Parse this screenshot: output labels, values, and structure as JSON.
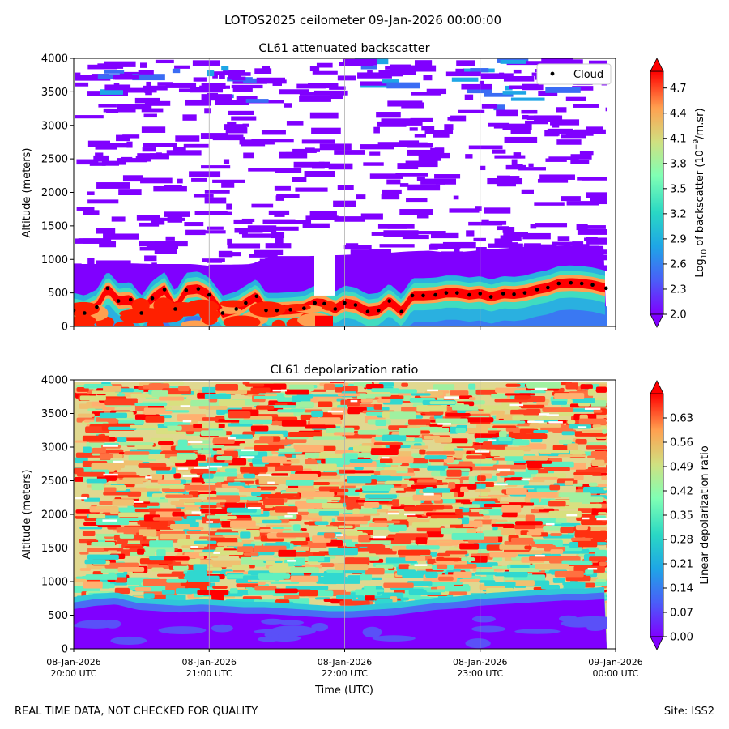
{
  "suptitle": "LOTOS2025 ceilometer 09-Jan-2026 00:00:00",
  "footer_left": "REAL TIME DATA, NOT CHECKED FOR QUALITY",
  "footer_right": "Site: ISS2",
  "xlabel": "Time (UTC)",
  "x_ticks": [
    {
      "date": "08-Jan-2026",
      "time": "20:00 UTC"
    },
    {
      "date": "08-Jan-2026",
      "time": "21:00 UTC"
    },
    {
      "date": "08-Jan-2026",
      "time": "22:00 UTC"
    },
    {
      "date": "08-Jan-2026",
      "time": "23:00 UTC"
    },
    {
      "date": "09-Jan-2026",
      "time": "00:00 UTC"
    }
  ],
  "chart_data": [
    {
      "type": "heatmap",
      "title": "CL61 attenuated backscatter",
      "ylabel": "Altitude (meters)",
      "xlim_hours": [
        20,
        24
      ],
      "ylim": [
        0,
        4000
      ],
      "y_ticks": [
        0,
        500,
        1000,
        1500,
        2000,
        2500,
        3000,
        3500,
        4000
      ],
      "colorbar": {
        "label": "Log10 of backscatter (10^-9/m.sr)",
        "range": [
          2.0,
          4.9
        ],
        "ticks": [
          "2.0",
          "2.3",
          "2.6",
          "2.9",
          "3.2",
          "3.5",
          "3.8",
          "4.1",
          "4.4",
          "4.7"
        ]
      },
      "legend": {
        "label": "Cloud",
        "loc": "top-right"
      },
      "cloud_base_series": {
        "name": "Cloud",
        "x_hours": [
          20.0,
          20.08,
          20.17,
          20.25,
          20.33,
          20.42,
          20.5,
          20.58,
          20.67,
          20.75,
          20.83,
          20.92,
          21.0,
          21.1,
          21.2,
          21.27,
          21.35,
          21.42,
          21.5,
          21.6,
          21.7,
          21.78,
          21.85,
          21.93,
          22.0,
          22.08,
          22.17,
          22.25,
          22.33,
          22.42,
          22.5,
          22.58,
          22.67,
          22.75,
          22.83,
          22.92,
          23.0,
          23.08,
          23.17,
          23.25,
          23.33,
          23.42,
          23.5,
          23.58,
          23.67,
          23.75,
          23.83,
          23.93
        ],
        "altitude_m": [
          240,
          200,
          290,
          570,
          380,
          400,
          200,
          420,
          550,
          260,
          540,
          560,
          470,
          200,
          260,
          350,
          450,
          240,
          240,
          250,
          270,
          350,
          340,
          260,
          350,
          320,
          220,
          240,
          380,
          220,
          460,
          460,
          470,
          500,
          500,
          470,
          490,
          440,
          490,
          480,
          500,
          550,
          580,
          640,
          650,
          640,
          620,
          570
        ]
      },
      "boundary_layer_top_m": [
        930,
        930,
        930,
        940,
        930,
        930,
        930,
        900,
        920,
        930,
        1050,
        1050,
        1050,
        1060,
        1070,
        1080,
        1100,
        1120,
        1130,
        1100,
        1120,
        1150,
        1170,
        1190,
        1200,
        1210,
        1200,
        1200
      ]
    },
    {
      "type": "heatmap",
      "title": "CL61 depolarization ratio",
      "ylabel": "Altitude (meters)",
      "xlim_hours": [
        20,
        24
      ],
      "ylim": [
        0,
        4000
      ],
      "y_ticks": [
        0,
        500,
        1000,
        1500,
        2000,
        2500,
        3000,
        3500,
        4000
      ],
      "colorbar": {
        "label": "Linear depolarization ratio",
        "range": [
          0.0,
          0.7
        ],
        "ticks": [
          "0.00",
          "0.07",
          "0.14",
          "0.21",
          "0.28",
          "0.35",
          "0.42",
          "0.49",
          "0.56",
          "0.63"
        ]
      },
      "low_layer_top_m": [
        650,
        700,
        720,
        640,
        620,
        600,
        620,
        600,
        580,
        580,
        560,
        540,
        520,
        520,
        540,
        560,
        600,
        640,
        660,
        700,
        720,
        740,
        760,
        780,
        780,
        800
      ]
    }
  ]
}
